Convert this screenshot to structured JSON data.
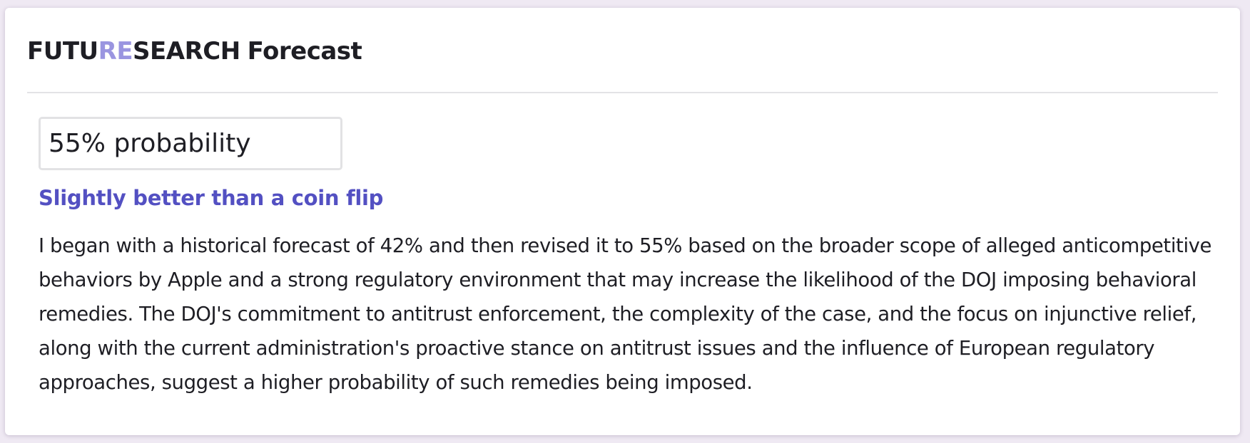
{
  "header": {
    "brand_part1": "FUTU",
    "brand_accent": "RE",
    "brand_part2": "SEARCH",
    "title_suffix": "Forecast"
  },
  "forecast": {
    "probability_label": "55% probability",
    "verdict": "Slightly better than a coin flip",
    "rationale": "I began with a historical forecast of 42% and then revised it to 55% based on the broader scope of alleged anticompetitive behaviors by Apple and a strong regulatory environment that may increase the likelihood of the DOJ imposing behavioral remedies. The DOJ's commitment to antitrust enforcement, the complexity of the case, and the focus on injunctive relief, along with the current administration's proactive stance on antitrust issues and the influence of European regulatory approaches, suggest a higher probability of such remedies being imposed."
  },
  "colors": {
    "brand_accent": "#9a95e0",
    "verdict_text": "#5350c2",
    "text": "#1e1e24",
    "background": "#efe9f3"
  }
}
